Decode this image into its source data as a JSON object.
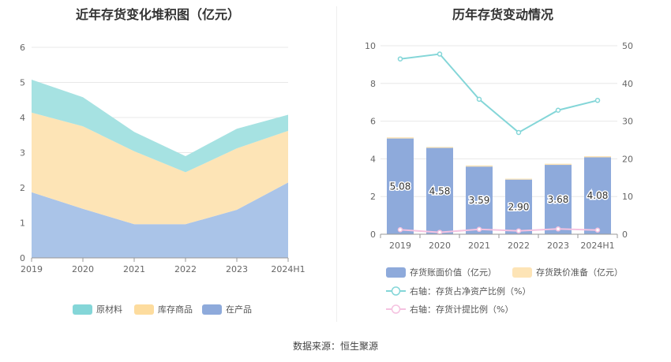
{
  "source_text": "数据来源：恒生聚源",
  "chart_data": [
    {
      "type": "area",
      "stacked": true,
      "title": "近年存货变化堆积图（亿元）",
      "categories": [
        "2019",
        "2020",
        "2021",
        "2022",
        "2023",
        "2024H1"
      ],
      "ylim": [
        0,
        6
      ],
      "yticks": [
        "0",
        "1",
        "2",
        "3",
        "4",
        "5",
        "6"
      ],
      "grid": true,
      "legend_position": "bottom",
      "series": [
        {
          "name": "在产品",
          "color": "#aac4e8",
          "legend_color": "#8eaadb",
          "values": [
            1.87,
            1.4,
            0.96,
            0.96,
            1.37,
            2.15
          ]
        },
        {
          "name": "库存商品",
          "color": "#fde4b6",
          "legend_color": "#fddc9e",
          "values": [
            2.27,
            2.35,
            2.08,
            1.48,
            1.75,
            1.47
          ]
        },
        {
          "name": "原材料",
          "color": "#a6e2e2",
          "legend_color": "#84d6d8",
          "values": [
            0.94,
            0.83,
            0.55,
            0.46,
            0.56,
            0.46
          ]
        }
      ],
      "legend_order": [
        "原材料",
        "库存商品",
        "在产品"
      ]
    },
    {
      "type": "bar",
      "title": "历年存货变动情况",
      "categories": [
        "2019",
        "2020",
        "2021",
        "2022",
        "2023",
        "2024H1"
      ],
      "ylim": [
        0,
        10
      ],
      "yticks": [
        "0",
        "2",
        "4",
        "6",
        "8",
        "10"
      ],
      "y2lim": [
        0,
        50
      ],
      "y2ticks": [
        "0",
        "10",
        "20",
        "30",
        "40",
        "50"
      ],
      "grid": true,
      "legend_position": "bottom",
      "series": [
        {
          "name": "存货账面价值（亿元）",
          "kind": "bar",
          "color": "#8eaadb",
          "values": [
            5.08,
            4.58,
            3.59,
            2.9,
            3.68,
            4.08
          ],
          "labels": [
            "5.08",
            "4.58",
            "3.59",
            "2.90",
            "3.68",
            "4.08"
          ]
        },
        {
          "name": "存货跌价准备（亿元）",
          "kind": "bar-stacked",
          "color": "#fde4b6",
          "values": [
            0.06,
            0.05,
            0.06,
            0.05,
            0.06,
            0.06
          ]
        },
        {
          "name": "右轴：存货占净资产比例（%）",
          "kind": "line",
          "axis": "right",
          "color": "#84d6d8",
          "values": [
            46.5,
            47.8,
            35.8,
            27.0,
            32.9,
            35.5
          ]
        },
        {
          "name": "右轴：存货计提比例（%）",
          "kind": "line",
          "axis": "right",
          "color": "#f5c2e0",
          "values": [
            1.2,
            0.5,
            1.3,
            0.9,
            1.4,
            1.1
          ]
        }
      ]
    }
  ]
}
